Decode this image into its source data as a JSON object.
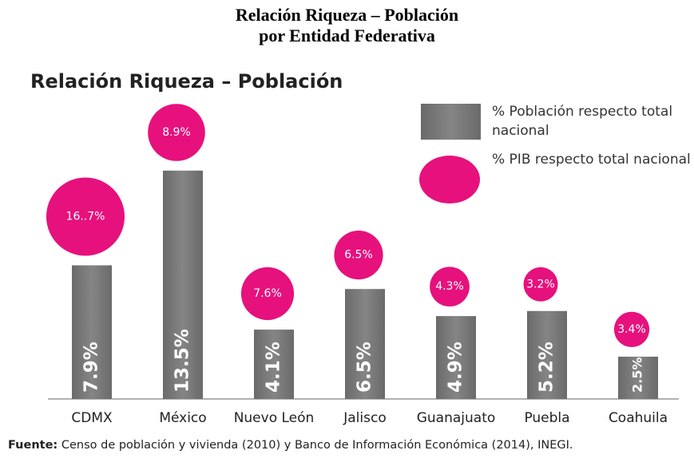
{
  "chart_data": {
    "type": "bar_bubble",
    "page_title": [
      "Relación Riqueza – Población",
      "por Entidad Federativa"
    ],
    "title": "Relación Riqueza – Población",
    "categories": [
      "CDMX",
      "México",
      "Nuevo León",
      "Jalisco",
      "Guanajuato",
      "Puebla",
      "Coahuila"
    ],
    "series": [
      {
        "name": "% Población respecto total nacional",
        "color": "#7a7a7a",
        "values": [
          7.9,
          13.5,
          4.1,
          6.5,
          4.9,
          5.2,
          2.5
        ],
        "value_labels": [
          "7.9%",
          "13.5%",
          "4.1%",
          "6.5%",
          "4.9%",
          "5.2%",
          "2.5%"
        ]
      },
      {
        "name": "% PIB respecto total nacional",
        "color": "#e6117d",
        "values": [
          16.7,
          8.9,
          7.6,
          6.5,
          4.3,
          3.2,
          3.4
        ],
        "value_labels": [
          "16..7%",
          "8.9%",
          "7.6%",
          "6.5%",
          "4.3%",
          "3.2%",
          "3.4%"
        ]
      }
    ],
    "source": {
      "label": "Fuente:",
      "text": "Censo de población y vivienda (2010) y Banco de Información Económica (2014), INEGI."
    }
  }
}
